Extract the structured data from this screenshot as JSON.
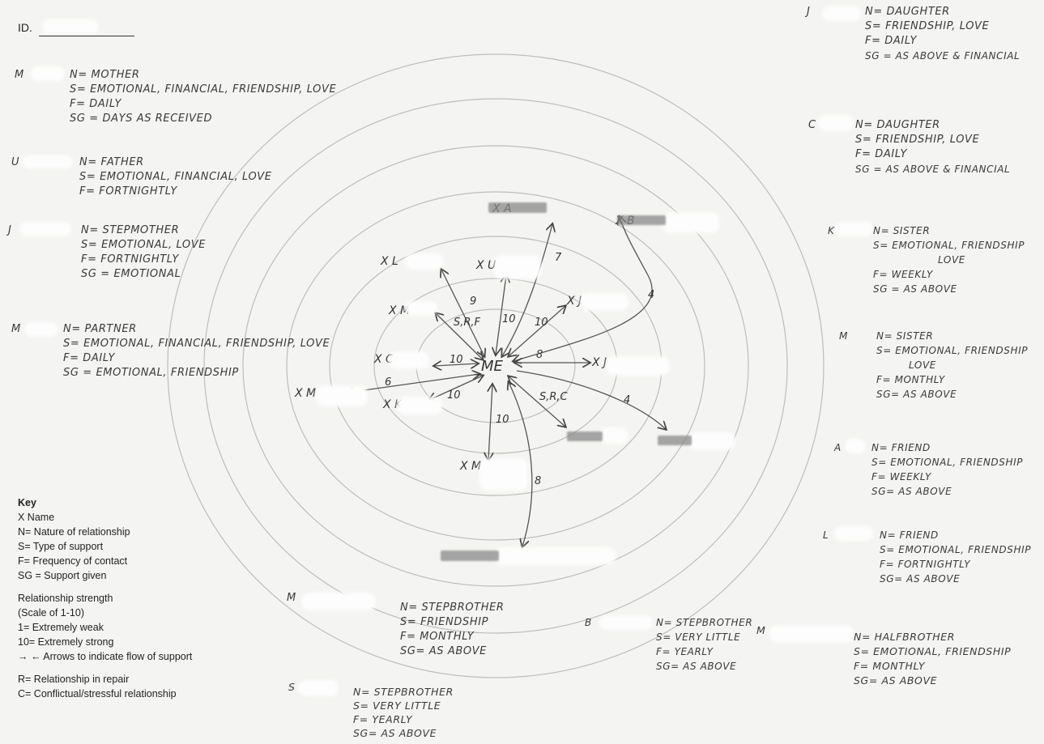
{
  "id_label": "ID.",
  "center_label": "ME",
  "key": {
    "title": "Key",
    "lines_a": [
      "X Name",
      "N= Nature of relationship",
      "S= Type of support",
      "F= Frequency of contact",
      "SG = Support given"
    ],
    "lines_b": [
      "Relationship strength",
      "(Scale of 1-10)",
      "1= Extremely weak",
      "10= Extremely strong",
      "→ ← Arrows to indicate flow of support"
    ],
    "lines_c": [
      "R= Relationship in repair",
      "C= Conflictual/stressful relationship"
    ]
  },
  "people": [
    {
      "initial": "M",
      "lines": [
        "N= MOTHER",
        "S= EMOTIONAL, FINANCIAL, FRIENDSHIP, LOVE",
        "F= DAILY",
        "SG = DAYS AS RECEIVED"
      ]
    },
    {
      "initial": "U",
      "lines": [
        "N= FATHER",
        "S= EMOTIONAL, FINANCIAL, LOVE",
        "F= FORTNIGHTLY"
      ]
    },
    {
      "initial": "J",
      "lines": [
        "N= STEPMOTHER",
        "S= EMOTIONAL, LOVE",
        "F= FORTNIGHTLY",
        "SG = EMOTIONAL"
      ]
    },
    {
      "initial": "M",
      "lines": [
        "N= PARTNER",
        "S= EMOTIONAL, FINANCIAL, FRIENDSHIP, LOVE",
        "F= DAILY",
        "SG = EMOTIONAL, FRIENDSHIP"
      ]
    },
    {
      "initial": "J",
      "lines": [
        "N= DAUGHTER",
        "S= FRIENDSHIP, LOVE",
        "F= DAILY",
        "SG = AS ABOVE & FINANCIAL"
      ]
    },
    {
      "initial": "C",
      "lines": [
        "N= DAUGHTER",
        "S= FRIENDSHIP, LOVE",
        "F= DAILY",
        "SG = AS ABOVE & FINANCIAL"
      ]
    },
    {
      "initial": "K",
      "lines": [
        "N= SISTER",
        "S= EMOTIONAL, FRIENDSHIP",
        "LOVE",
        "F= WEEKLY",
        "SG = AS ABOVE"
      ]
    },
    {
      "initial": "M",
      "lines": [
        "N= SISTER",
        "S= EMOTIONAL, FRIENDSHIP",
        "LOVE",
        "F= MONTHLY",
        "SG= AS ABOVE"
      ]
    },
    {
      "initial": "A",
      "lines": [
        "N= FRIEND",
        "S= EMOTIONAL, FRIENDSHIP",
        "F= WEEKLY",
        "SG= AS ABOVE"
      ]
    },
    {
      "initial": "L",
      "lines": [
        "N= FRIEND",
        "S= EMOTIONAL, FRIENDSHIP",
        "F= FORTNIGHTLY",
        "SG= AS ABOVE"
      ]
    },
    {
      "initial": "M",
      "lines": [
        "N= STEPBROTHER",
        "S= FRIENDSHIP",
        "F= MONTHLY",
        "SG= AS ABOVE"
      ]
    },
    {
      "initial": "B",
      "lines": [
        "N= STEPBROTHER",
        "S= VERY LITTLE",
        "F= YEARLY",
        "SG= AS ABOVE"
      ]
    },
    {
      "initial": "M",
      "lines": [
        "N= HALFBROTHER",
        "S= EMOTIONAL, FRIENDSHIP",
        "F= MONTHLY",
        "SG= AS ABOVE"
      ]
    },
    {
      "initial": "S",
      "lines": [
        "N= STEPBROTHER",
        "S= VERY LITTLE",
        "F= YEARLY",
        "SG= AS ABOVE"
      ]
    }
  ],
  "diagram_labels": {
    "x_l": "X L",
    "x_m1": "X M",
    "x_o": "X O",
    "x_m2": "X M",
    "x_k": "X K",
    "x_j1": "X J",
    "x_j2": "X J",
    "x_u": "X U",
    "x_mc": "X M",
    "x_a": "X A",
    "x_b": "X B",
    "n_9": "9",
    "n_srf": "S,R,F",
    "n_10a": "10",
    "n_7": "7",
    "n_10b": "10",
    "n_4a": "4",
    "n_10c": "10",
    "n_8a": "8",
    "n_6": "6",
    "n_10d": "10",
    "n_src": "S,R,C",
    "n_4b": "4",
    "n_10e": "10",
    "n_8b": "8"
  }
}
